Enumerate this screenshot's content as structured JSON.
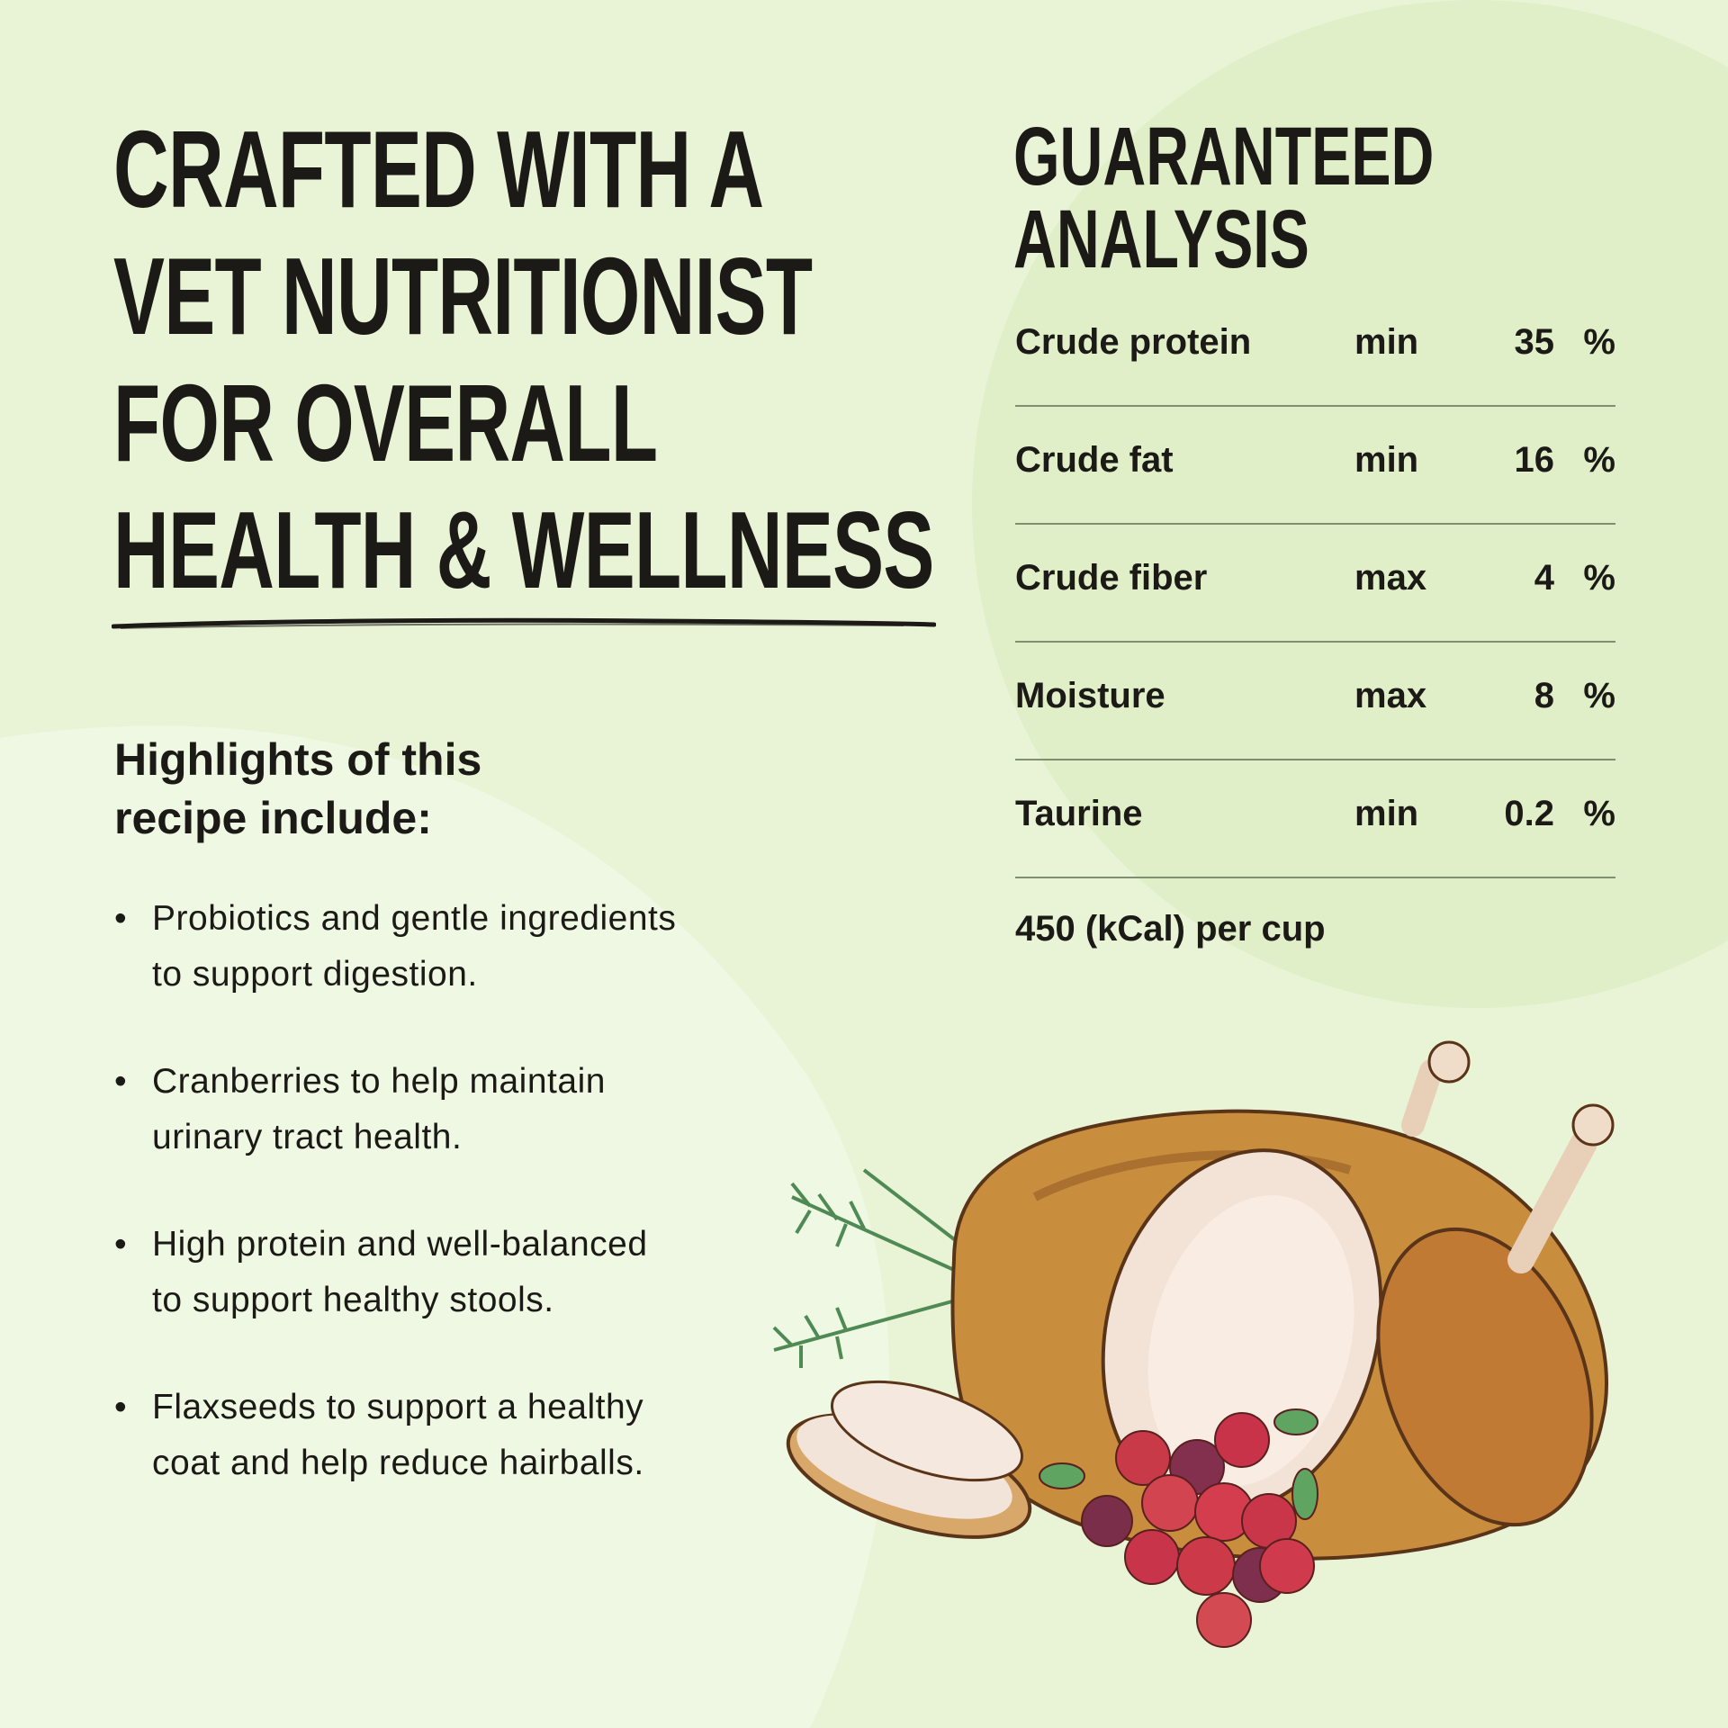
{
  "headline": [
    "CRAFTED WITH A",
    "VET NUTRITIONIST",
    "FOR OVERALL",
    "HEALTH & WELLNESS"
  ],
  "highlights": {
    "title_lines": [
      "Highlights of this",
      "recipe include:"
    ],
    "items": [
      [
        "Probiotics and gentle ingredients",
        "to support digestion."
      ],
      [
        "Cranberries to help maintain",
        "urinary tract health."
      ],
      [
        "High protein and well-balanced",
        "to support healthy stools."
      ],
      [
        "Flaxseeds to support a healthy",
        "coat and help reduce hairballs."
      ]
    ]
  },
  "analysis": {
    "title_lines": [
      "GUARANTEED",
      "ANALYSIS"
    ],
    "rows": [
      {
        "nutrient": "Crude protein",
        "qualifier": "min",
        "value": "35",
        "unit": "%"
      },
      {
        "nutrient": "Crude fat",
        "qualifier": "min",
        "value": "16",
        "unit": "%"
      },
      {
        "nutrient": "Crude fiber",
        "qualifier": "max",
        "value": "4",
        "unit": "%"
      },
      {
        "nutrient": "Moisture",
        "qualifier": "max",
        "value": "8",
        "unit": "%"
      },
      {
        "nutrient": "Taurine",
        "qualifier": "min",
        "value": "0.2",
        "unit": "%"
      }
    ],
    "calories": "450 (kCal) per cup"
  },
  "colors": {
    "background": "#eaf4d9",
    "text": "#1c1a16",
    "divider": "#7f9070"
  },
  "illustration": "roast-turkey-with-cranberries-and-rosemary"
}
